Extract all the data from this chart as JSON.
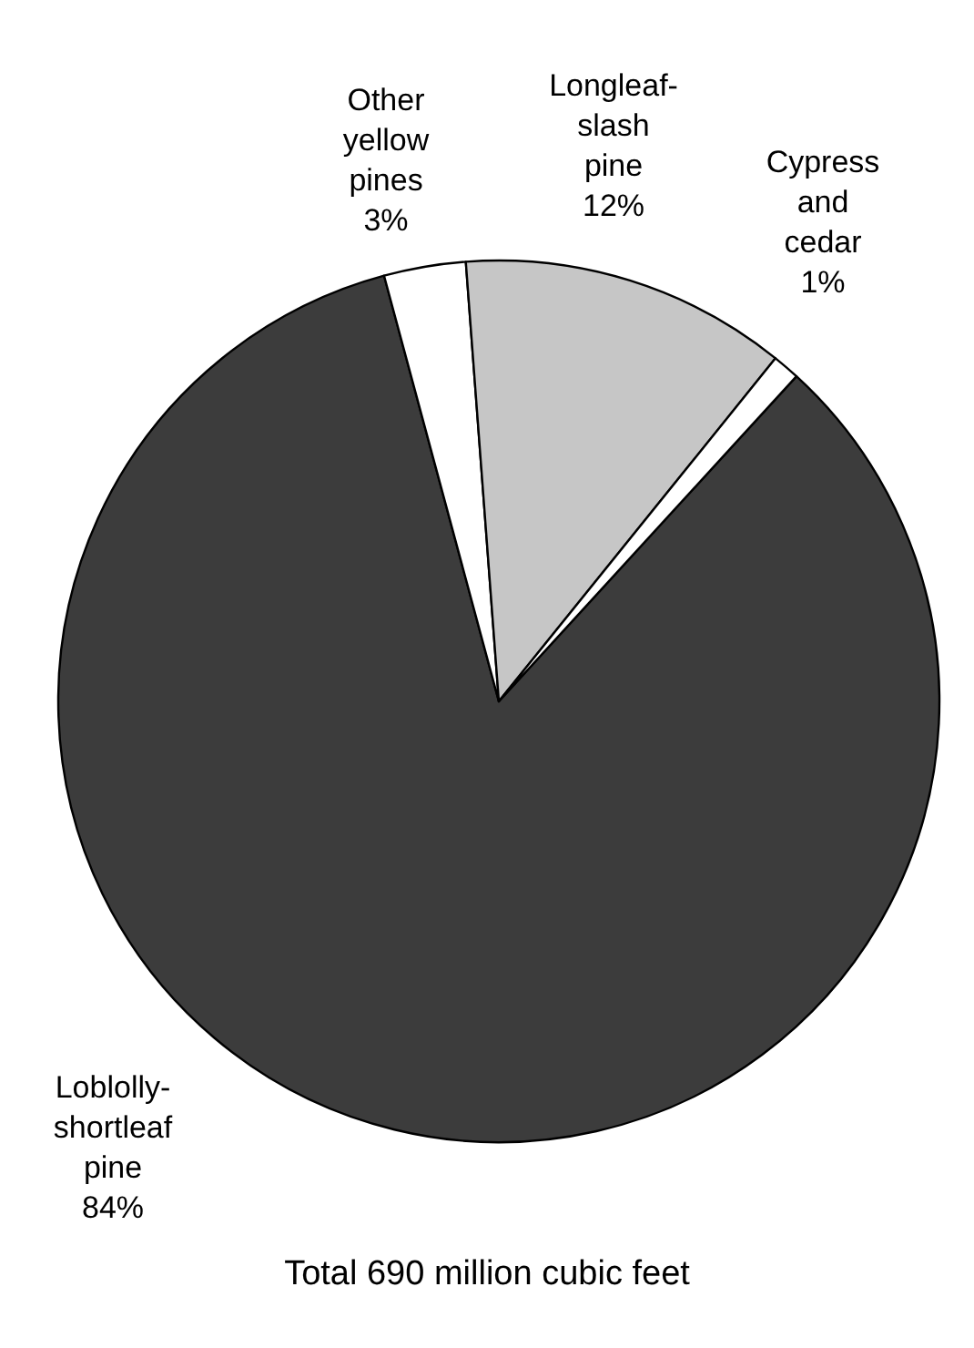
{
  "chart_data": {
    "type": "pie",
    "categories": [
      "Loblolly-shortleaf pine",
      "Other yellow pines",
      "Longleaf-slash pine",
      "Cypress and cedar"
    ],
    "values": [
      84,
      3,
      12,
      1
    ],
    "colors": [
      "#3c3c3c",
      "#ffffff",
      "#c6c6c6",
      "#ffffff"
    ],
    "value_labels": [
      "84%",
      "3%",
      "12%",
      "1%"
    ],
    "annotations": [
      "Total 690 million cubic feet"
    ]
  }
}
